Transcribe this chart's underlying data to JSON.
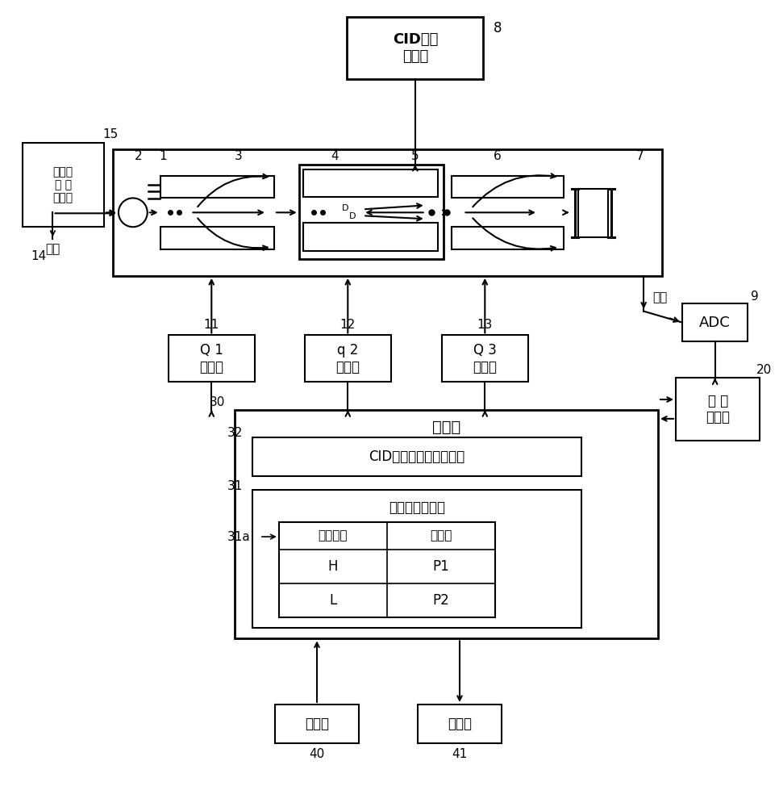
{
  "bg_color": "#ffffff",
  "border_color": "#000000",
  "labels": {
    "cid_gas": "CID气体\n供给部",
    "sample_supply": "调整用\n试 料\n供给部",
    "sample": "试料",
    "Q1_power": "Q 1\n电源部",
    "q2_power": "q 2\n电源部",
    "Q3_power": "Q 3\n电源部",
    "ADC": "ADC",
    "exhaust": "排气",
    "control": "控制部",
    "cid_auto": "CID气体条件自动调整部",
    "measure_store": "测定条件存储部",
    "col1_header": "扫描速度",
    "col2_header": "供给压",
    "row1_col1": "H",
    "row1_col2": "P1",
    "row2_col1": "L",
    "row2_col2": "P2",
    "data_proc": "数 据\n处理部",
    "input": "输入部",
    "display": "显示部"
  }
}
